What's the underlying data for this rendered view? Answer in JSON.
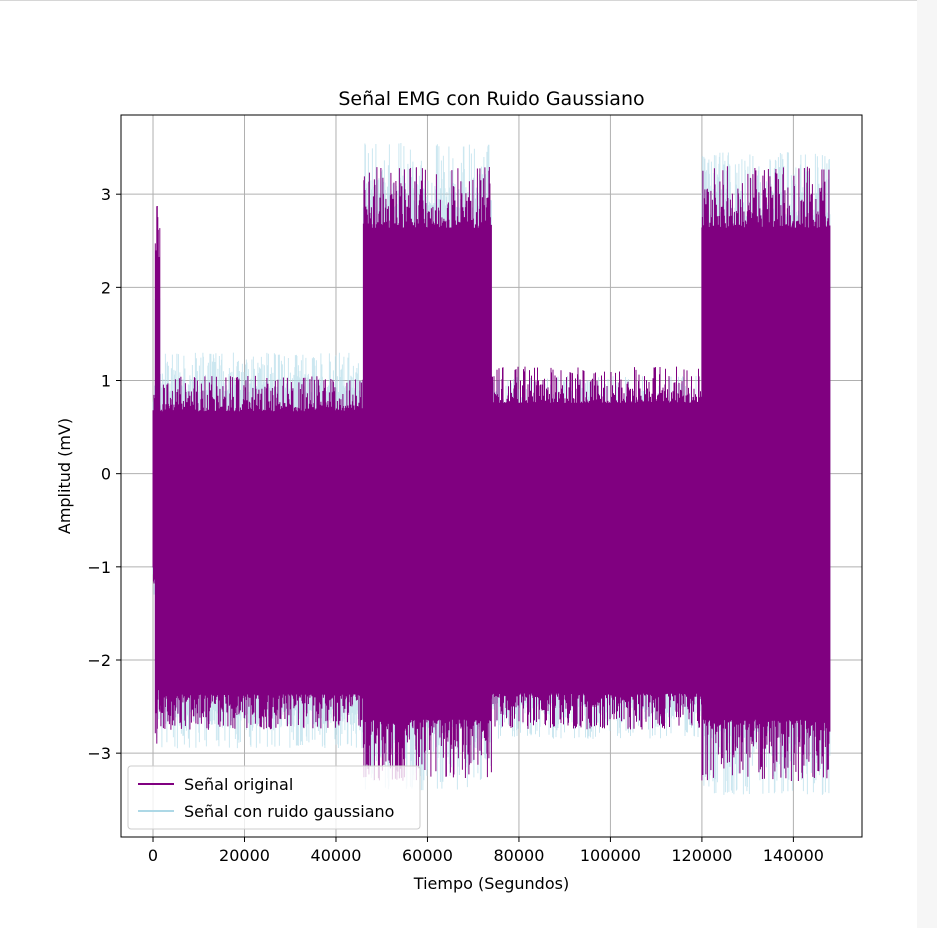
{
  "chart_data": {
    "type": "line",
    "title": "Señal EMG con Ruido Gaussiano",
    "xlabel": "Tiempo (Segundos)",
    "ylabel": "Amplitud (mV)",
    "xlim": [
      -7000,
      155000
    ],
    "ylim": [
      -3.9,
      3.85
    ],
    "xticks": [
      0,
      20000,
      40000,
      60000,
      80000,
      100000,
      120000,
      140000
    ],
    "xtick_labels": [
      "0",
      "20000",
      "40000",
      "60000",
      "80000",
      "100000",
      "120000",
      "140000"
    ],
    "yticks": [
      -3,
      -2,
      -1,
      0,
      1,
      2,
      3
    ],
    "ytick_labels": [
      "−3",
      "−2",
      "−1",
      "0",
      "1",
      "2",
      "3"
    ],
    "grid": true,
    "legend_position": "lower-left",
    "series": [
      {
        "name": "Señal original",
        "color": "#800080",
        "x_range": [
          0,
          148000
        ],
        "segments": [
          {
            "x": [
              0,
              500
            ],
            "ymin": -1.2,
            "ymax": 0.85
          },
          {
            "x": [
              500,
              1500
            ],
            "ymin": -2.9,
            "ymax": 2.9
          },
          {
            "x": [
              1500,
              46000
            ],
            "ymin": -2.75,
            "ymax": 1.05
          },
          {
            "x": [
              46000,
              74000
            ],
            "ymin": -3.3,
            "ymax": 3.3
          },
          {
            "x": [
              74000,
              120000
            ],
            "ymin": -2.75,
            "ymax": 1.15
          },
          {
            "x": [
              120000,
              148000
            ],
            "ymin": -3.3,
            "ymax": 3.3
          }
        ]
      },
      {
        "name": "Señal con ruido gaussiano",
        "color": "#add8e6",
        "x_range": [
          0,
          148000
        ],
        "segments": [
          {
            "x": [
              0,
              500
            ],
            "ymin": -1.3,
            "ymax": 0.95
          },
          {
            "x": [
              500,
              1500
            ],
            "ymin": -2.85,
            "ymax": 2.4
          },
          {
            "x": [
              1500,
              46000
            ],
            "ymin": -2.95,
            "ymax": 1.3
          },
          {
            "x": [
              46000,
              74000
            ],
            "ymin": -3.4,
            "ymax": 3.55
          },
          {
            "x": [
              74000,
              120000
            ],
            "ymin": -2.85,
            "ymax": 1.05
          },
          {
            "x": [
              120000,
              148000
            ],
            "ymin": -3.45,
            "ymax": 3.45
          }
        ]
      }
    ]
  }
}
